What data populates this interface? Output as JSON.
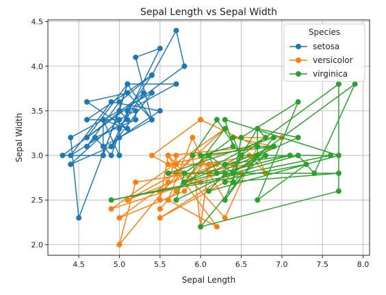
{
  "chart_data": {
    "type": "line",
    "title": "Sepal Length vs Sepal Width",
    "xlabel": "Sepal Length",
    "ylabel": "Sepal Width",
    "xlim": [
      4.12,
      8.08
    ],
    "ylim": [
      1.88,
      4.52
    ],
    "xticks": [
      "4.5",
      "5.0",
      "5.5",
      "6.0",
      "6.5",
      "7.0",
      "7.5",
      "8.0"
    ],
    "yticks": [
      "2.0",
      "2.5",
      "3.0",
      "3.5",
      "4.0",
      "4.5"
    ],
    "grid": true,
    "legend": {
      "title": "Species",
      "placement": "top-right"
    },
    "series": [
      {
        "name": "setosa",
        "color": "#1f77b4",
        "x": [
          5.1,
          4.9,
          4.7,
          4.6,
          5.0,
          5.4,
          4.6,
          5.0,
          4.4,
          4.9,
          5.4,
          4.8,
          4.8,
          4.3,
          5.8,
          5.7,
          5.4,
          5.1,
          5.7,
          5.1,
          5.4,
          5.1,
          4.6,
          5.1,
          4.8,
          5.0,
          5.0,
          5.2,
          5.2,
          4.7,
          4.8,
          5.4,
          5.2,
          5.5,
          4.9,
          5.0,
          5.5,
          4.9,
          4.4,
          5.1,
          5.0,
          4.5,
          4.4,
          5.0,
          5.1,
          4.8,
          5.1,
          4.6,
          5.3,
          5.0
        ],
        "y": [
          3.5,
          3.0,
          3.2,
          3.1,
          3.6,
          3.9,
          3.4,
          3.4,
          2.9,
          3.1,
          3.7,
          3.4,
          3.0,
          3.0,
          4.0,
          4.4,
          3.9,
          3.5,
          3.8,
          3.8,
          3.4,
          3.7,
          3.6,
          3.3,
          3.4,
          3.0,
          3.4,
          3.5,
          3.4,
          3.2,
          3.1,
          3.4,
          4.1,
          4.2,
          3.1,
          3.2,
          3.5,
          3.6,
          3.0,
          3.4,
          3.5,
          2.3,
          3.2,
          3.5,
          3.8,
          3.0,
          3.8,
          3.2,
          3.7,
          3.3
        ]
      },
      {
        "name": "versicolor",
        "color": "#ff7f0e",
        "x": [
          7.0,
          6.4,
          6.9,
          5.5,
          6.5,
          5.7,
          6.3,
          4.9,
          6.6,
          5.2,
          5.0,
          5.9,
          6.0,
          6.1,
          5.6,
          6.7,
          5.6,
          5.8,
          6.2,
          5.6,
          5.9,
          6.1,
          6.3,
          6.1,
          6.4,
          6.6,
          6.8,
          6.7,
          6.0,
          5.7,
          5.5,
          5.5,
          5.8,
          6.0,
          5.4,
          6.0,
          6.7,
          6.3,
          5.6,
          5.5,
          5.5,
          6.1,
          5.8,
          5.0,
          5.6,
          5.7,
          5.7,
          6.2,
          5.1,
          5.7
        ],
        "y": [
          3.2,
          3.2,
          3.1,
          2.3,
          2.8,
          2.8,
          3.3,
          2.4,
          2.9,
          2.7,
          2.0,
          3.0,
          2.2,
          2.9,
          2.9,
          3.1,
          3.0,
          2.7,
          2.2,
          2.5,
          3.2,
          2.8,
          2.5,
          2.8,
          2.9,
          3.0,
          2.8,
          3.0,
          2.9,
          2.6,
          2.4,
          2.4,
          2.7,
          2.7,
          3.0,
          3.4,
          3.1,
          2.3,
          3.0,
          2.5,
          2.6,
          3.0,
          2.6,
          2.3,
          2.7,
          3.0,
          2.9,
          2.9,
          2.5,
          2.8
        ]
      },
      {
        "name": "virginica",
        "color": "#2ca02c",
        "x": [
          6.3,
          5.8,
          7.1,
          6.3,
          6.5,
          7.6,
          4.9,
          7.3,
          6.7,
          7.2,
          6.5,
          6.4,
          6.8,
          5.7,
          5.8,
          6.4,
          6.5,
          7.7,
          7.7,
          6.0,
          6.9,
          5.6,
          7.7,
          6.3,
          6.7,
          7.2,
          6.2,
          6.1,
          6.4,
          7.2,
          7.4,
          7.9,
          6.4,
          6.3,
          6.1,
          7.7,
          6.3,
          6.4,
          6.0,
          6.9,
          6.7,
          6.9,
          5.8,
          6.8,
          6.7,
          6.7,
          6.3,
          6.5,
          6.2,
          5.9
        ],
        "y": [
          3.3,
          2.7,
          3.0,
          2.9,
          3.0,
          3.0,
          2.5,
          2.9,
          2.5,
          3.6,
          3.2,
          2.7,
          3.0,
          2.5,
          2.8,
          3.2,
          3.0,
          3.8,
          2.6,
          2.2,
          3.2,
          2.8,
          2.8,
          2.7,
          3.3,
          3.2,
          2.8,
          3.0,
          2.8,
          3.0,
          2.8,
          3.8,
          2.8,
          2.8,
          2.6,
          3.0,
          3.4,
          3.1,
          3.0,
          3.1,
          3.1,
          3.1,
          2.7,
          3.2,
          3.3,
          3.0,
          2.5,
          3.0,
          3.4,
          3.0
        ]
      }
    ]
  }
}
